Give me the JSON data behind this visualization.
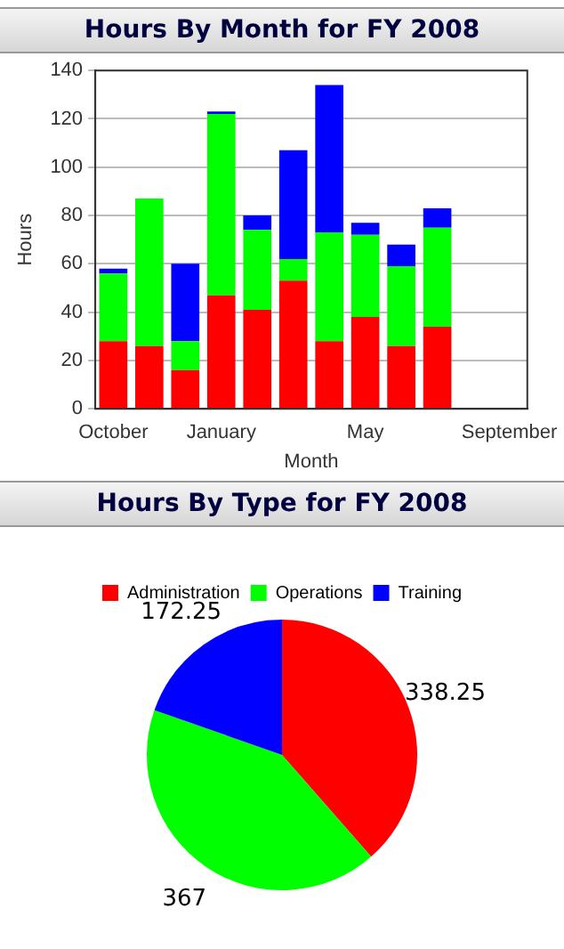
{
  "chart_data": [
    {
      "type": "bar",
      "title": "Hours By Month for FY 2008",
      "xlabel": "Month",
      "ylabel": "Hours",
      "stacked": true,
      "categories": [
        "October",
        null,
        null,
        "January",
        null,
        null,
        null,
        "May",
        null,
        null,
        null,
        "September"
      ],
      "series": [
        {
          "color": "#ff0000",
          "values": [
            28,
            26,
            16,
            47,
            41,
            53,
            28,
            38,
            26,
            34,
            null,
            null
          ]
        },
        {
          "color": "#00ff00",
          "values": [
            28,
            61,
            12,
            75,
            33,
            9,
            45,
            34,
            33,
            41,
            null,
            null
          ]
        },
        {
          "color": "#0000ff",
          "values": [
            2,
            0,
            32,
            1,
            6,
            45,
            61,
            5,
            9,
            8,
            null,
            null
          ]
        }
      ],
      "ylim": [
        0,
        140
      ],
      "yticks": [
        0,
        20,
        40,
        60,
        80,
        100,
        120,
        140
      ],
      "grid": "y",
      "legend": false
    },
    {
      "type": "pie",
      "title": "Hours By Type for FY 2008",
      "categories": [
        "Administration",
        "Operations",
        "Training"
      ],
      "values": [
        338.25,
        367,
        172.25
      ],
      "colors": [
        "#ff0000",
        "#00ff00",
        "#0000ff"
      ],
      "data_labels": true,
      "legend": "top"
    }
  ]
}
